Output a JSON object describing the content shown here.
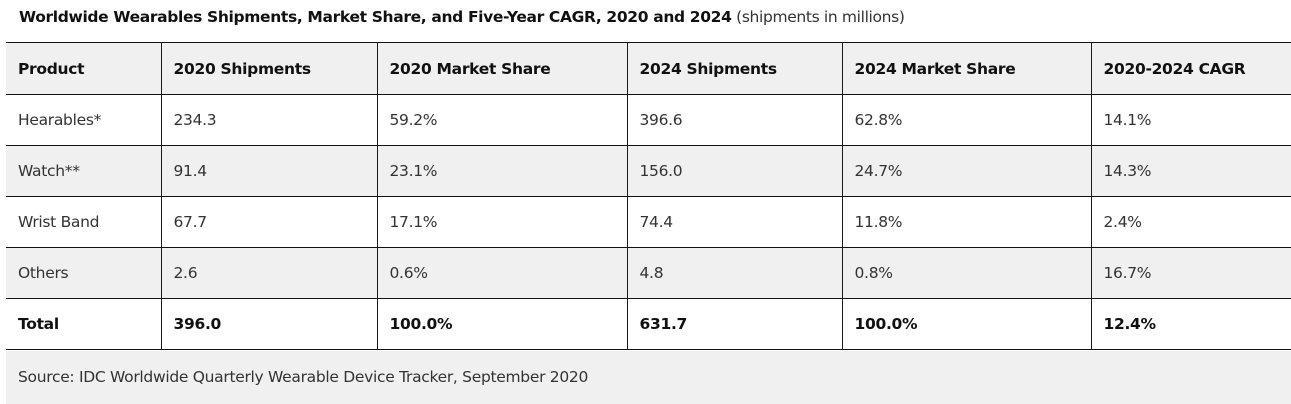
{
  "title": {
    "bold": "Worldwide Wearables Shipments, Market Share, and Five-Year CAGR, 2020 and 2024",
    "subtitle": "(shipments in millions)"
  },
  "table": {
    "headers": [
      "Product",
      "2020 Shipments",
      "2020 Market Share",
      "2024 Shipments",
      "2024 Market Share",
      "2020-2024 CAGR"
    ],
    "rows": [
      [
        "Hearables*",
        "234.3",
        "59.2%",
        "396.6",
        "62.8%",
        "14.1%"
      ],
      [
        "Watch**",
        "91.4",
        "23.1%",
        "156.0",
        "24.7%",
        "14.3%"
      ],
      [
        "Wrist Band",
        "67.7",
        "17.1%",
        "74.4",
        "11.8%",
        "2.4%"
      ],
      [
        "Others",
        "2.6",
        "0.6%",
        "4.8",
        "0.8%",
        "16.7%"
      ]
    ],
    "total": [
      "Total",
      "396.0",
      "100.0%",
      "631.7",
      "100.0%",
      "12.4%"
    ]
  },
  "source": "Source: IDC Worldwide Quarterly Wearable Device Tracker, September 2020",
  "colors": {
    "header_bg": "#f0f0f0",
    "alt_row_bg": "#f0f0f0",
    "border": "#111111",
    "text": "#333333"
  }
}
